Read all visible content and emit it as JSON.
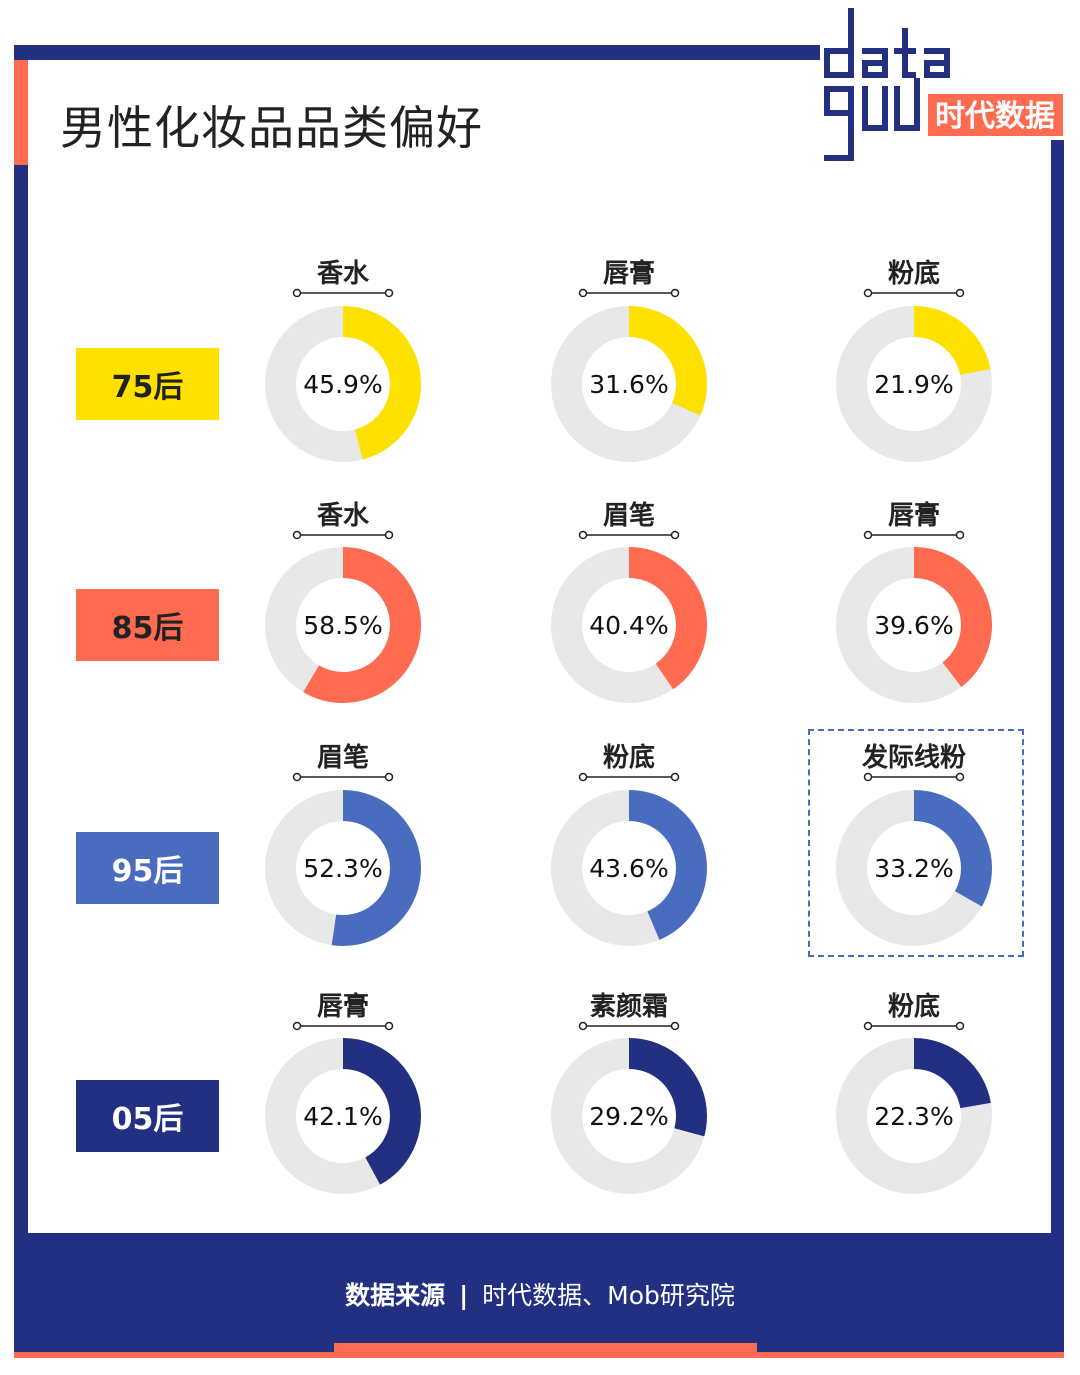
{
  "title": "男性化妆品品类偏好",
  "logo": {
    "text": "data good",
    "cn": "时代数据"
  },
  "colors": {
    "frame_blue": "#233082",
    "frame_orange": "#FF6B50",
    "ring_bg": "#E8E8E8"
  },
  "chart_data": {
    "type": "pie",
    "variant": "donut-grid",
    "title": "男性化妆品品类偏好",
    "rows": [
      {
        "group": "75后",
        "color": "#FFE100",
        "text_color": "#222222",
        "items": [
          {
            "category": "香水",
            "value": 45.9,
            "label": "45.9%"
          },
          {
            "category": "唇膏",
            "value": 31.6,
            "label": "31.6%"
          },
          {
            "category": "粉底",
            "value": 21.9,
            "label": "21.9%"
          }
        ]
      },
      {
        "group": "85后",
        "color": "#FF6B50",
        "text_color": "#222222",
        "items": [
          {
            "category": "香水",
            "value": 58.5,
            "label": "58.5%"
          },
          {
            "category": "眉笔",
            "value": 40.4,
            "label": "40.4%"
          },
          {
            "category": "唇膏",
            "value": 39.6,
            "label": "39.6%"
          }
        ]
      },
      {
        "group": "95后",
        "color": "#4A6CBF",
        "text_color": "#FFFFFF",
        "items": [
          {
            "category": "眉笔",
            "value": 52.3,
            "label": "52.3%"
          },
          {
            "category": "粉底",
            "value": 43.6,
            "label": "43.6%"
          },
          {
            "category": "发际线粉",
            "value": 33.2,
            "label": "33.2%",
            "highlighted": true
          }
        ]
      },
      {
        "group": "05后",
        "color": "#233082",
        "text_color": "#FFFFFF",
        "items": [
          {
            "category": "唇膏",
            "value": 42.1,
            "label": "42.1%"
          },
          {
            "category": "素颜霜",
            "value": 29.2,
            "label": "29.2%"
          },
          {
            "category": "粉底",
            "value": 22.3,
            "label": "22.3%"
          }
        ]
      }
    ]
  },
  "footer": {
    "source_label": "数据来源",
    "separator": "|",
    "source": "时代数据、Mob研究院"
  }
}
